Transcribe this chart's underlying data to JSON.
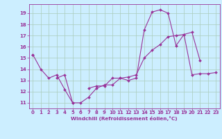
{
  "x": [
    0,
    1,
    2,
    3,
    4,
    5,
    6,
    7,
    8,
    9,
    10,
    11,
    12,
    13,
    14,
    15,
    16,
    17,
    18,
    19,
    20,
    21,
    22,
    23
  ],
  "curve1": [
    15.3,
    14.0,
    13.2,
    13.5,
    12.2,
    11.0,
    11.0,
    11.5,
    12.3,
    12.6,
    12.6,
    13.2,
    13.0,
    13.2,
    17.5,
    19.1,
    19.3,
    19.0,
    16.1,
    17.1,
    17.3,
    14.8,
    null,
    null
  ],
  "curve2": [
    15.3,
    null,
    null,
    13.2,
    13.5,
    11.0,
    null,
    12.3,
    12.5,
    12.5,
    13.2,
    13.2,
    13.3,
    13.5,
    15.0,
    15.7,
    16.2,
    16.9,
    17.0,
    17.1,
    13.5,
    13.6,
    13.6,
    13.7
  ],
  "line_color": "#993399",
  "bg_color": "#cceeff",
  "grid_color": "#aaccbb",
  "xlabel": "Windchill (Refroidissement éolien,°C)",
  "ylim": [
    10.5,
    19.8
  ],
  "xlim": [
    -0.5,
    23.5
  ],
  "yticks": [
    11,
    12,
    13,
    14,
    15,
    16,
    17,
    18,
    19
  ],
  "xticks": [
    0,
    1,
    2,
    3,
    4,
    5,
    6,
    7,
    8,
    9,
    10,
    11,
    12,
    13,
    14,
    15,
    16,
    17,
    18,
    19,
    20,
    21,
    22,
    23
  ],
  "tick_fontsize": 5.0,
  "xlabel_fontsize": 5.2,
  "marker_size": 2.0,
  "line_width": 0.8
}
